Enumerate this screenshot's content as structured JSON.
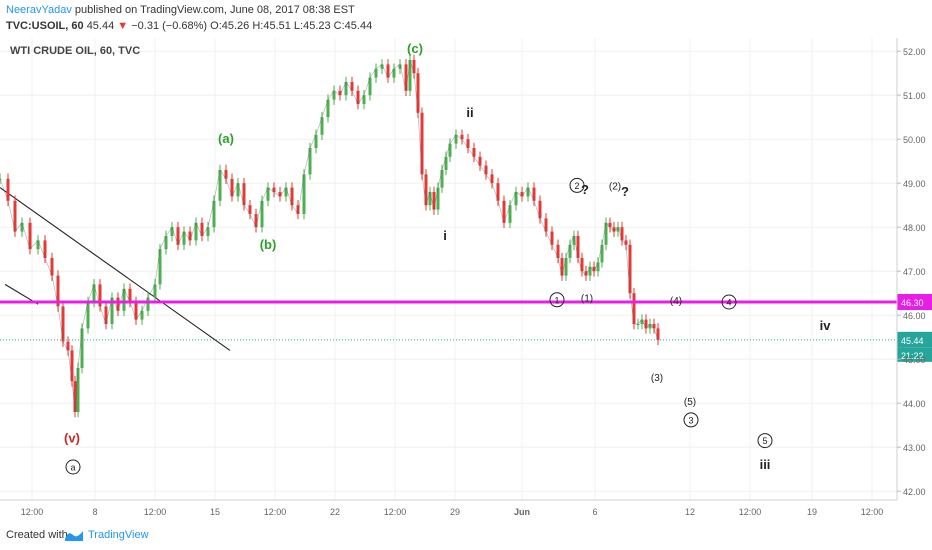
{
  "header": {
    "user": "NeeravYadav",
    "published": " published on TradingView.com, June 08, 2017 08:38 EST",
    "symbol": "TVC:USOIL, 60",
    "price": "45.44",
    "change_arrow": "▼",
    "change": "−0.31 (−0.68%)",
    "ohlc": "O:45.26 H:45.51 L:45.23 C:45.44"
  },
  "footer": {
    "created": "Created with",
    "brand": "TradingView"
  },
  "colors": {
    "magenta": "#e91ee6",
    "green": "#2ca02c",
    "red": "#c62828",
    "candle_up": "#4caf50",
    "candle_down": "#e53935",
    "price_badge": "#26a69a",
    "axis_text": "#666666"
  },
  "chart_data": {
    "type": "line",
    "title": "WTI CRUDE OIL, 60, TVC",
    "ylim": [
      41.8,
      52.3
    ],
    "y_ticks": [
      "42.00",
      "43.00",
      "44.00",
      "45.00",
      "46.00",
      "47.00",
      "48.00",
      "49.00",
      "50.00",
      "51.00",
      "52.00"
    ],
    "x_ticks": [
      "12:00",
      "8",
      "12:00",
      "15",
      "12:00",
      "22",
      "12:00",
      "29",
      "Jun",
      "6",
      "12",
      "12:00",
      "19",
      "12:00"
    ],
    "x_tick_index": [
      32,
      95,
      155,
      215,
      275,
      335,
      395,
      455,
      522,
      595,
      690,
      750,
      812,
      872
    ],
    "series": [
      {
        "x": [
          0,
          8,
          15,
          22,
          30,
          38,
          45,
          52,
          58,
          63,
          68,
          72,
          75,
          78,
          82,
          88,
          94,
          100,
          106,
          112,
          118,
          124,
          130,
          136,
          142,
          148,
          155,
          160,
          166,
          172,
          178,
          184,
          190,
          196,
          202,
          208,
          214,
          220,
          226,
          232,
          238,
          244,
          250,
          256,
          262,
          268,
          274,
          280,
          286,
          292,
          298,
          304,
          310,
          316,
          322,
          328,
          334,
          340,
          346,
          352,
          358,
          364,
          370,
          376,
          382,
          388,
          394,
          400,
          406,
          410,
          414,
          418,
          422,
          426,
          430,
          434,
          438,
          442,
          446,
          450,
          456,
          462,
          468,
          474,
          480,
          486,
          492,
          498,
          504,
          510,
          516,
          522,
          528,
          534,
          540,
          546,
          552,
          558,
          562,
          566,
          570,
          574,
          578,
          582,
          586,
          590,
          594,
          598,
          602,
          606,
          610,
          614,
          618,
          622,
          626,
          630,
          634,
          638,
          642,
          646,
          650,
          654,
          658
        ],
        "values": [
          49.1,
          48.6,
          47.9,
          48.1,
          47.5,
          47.7,
          47.3,
          46.9,
          46.2,
          45.4,
          45.2,
          44.5,
          43.8,
          44.8,
          45.7,
          46.3,
          46.7,
          46.2,
          45.8,
          46.4,
          46.1,
          46.6,
          46.3,
          45.9,
          46.1,
          46.4,
          46.7,
          47.5,
          47.8,
          48.0,
          47.6,
          47.9,
          47.7,
          48.1,
          47.8,
          48.0,
          48.6,
          49.3,
          49.1,
          48.7,
          49.0,
          48.5,
          48.3,
          48.0,
          48.6,
          48.9,
          48.8,
          48.7,
          48.9,
          48.5,
          48.3,
          49.2,
          49.8,
          50.1,
          50.5,
          50.9,
          51.1,
          51.0,
          51.3,
          51.1,
          50.8,
          51.0,
          51.4,
          51.6,
          51.7,
          51.4,
          51.6,
          51.7,
          51.1,
          51.8,
          51.5,
          50.6,
          49.2,
          48.5,
          48.8,
          48.4,
          48.9,
          49.3,
          49.6,
          49.9,
          50.1,
          50.0,
          49.8,
          49.6,
          49.4,
          49.2,
          49.0,
          48.6,
          48.1,
          48.5,
          48.8,
          48.7,
          48.9,
          48.6,
          48.2,
          47.9,
          47.6,
          47.3,
          46.9,
          47.3,
          47.6,
          47.8,
          47.3,
          47.0,
          46.9,
          47.1,
          47.0,
          47.2,
          47.6,
          48.1,
          48.0,
          47.9,
          48.0,
          47.7,
          47.6,
          46.5,
          45.8,
          45.8,
          45.9,
          45.7,
          45.8,
          45.7,
          45.44
        ]
      }
    ],
    "horizontal_line": {
      "value": 46.3,
      "label": "46.30"
    },
    "last_price": {
      "value": 45.44,
      "label": "45.44",
      "countdown": "21:22"
    },
    "trendlines": [
      {
        "from": [
          0,
          48.9
        ],
        "to": [
          230,
          45.2
        ]
      },
      {
        "from": [
          5,
          46.7
        ],
        "to": [
          38,
          46.25
        ]
      }
    ],
    "annotations": [
      {
        "text": "(c)",
        "x": 415,
        "y": 52.05,
        "color": "green"
      },
      {
        "text": "(a)",
        "x": 226,
        "y": 50.0,
        "color": "green"
      },
      {
        "text": "(b)",
        "x": 268,
        "y": 47.6,
        "color": "green"
      },
      {
        "text": "(v)",
        "x": 72,
        "y": 43.2,
        "color": "red"
      },
      {
        "text": "a",
        "x": 73,
        "y": 42.55,
        "color": "black",
        "circle": true
      },
      {
        "text": "ii",
        "x": 470,
        "y": 50.6,
        "color": "black",
        "bold": true
      },
      {
        "text": "i",
        "x": 445,
        "y": 47.8,
        "color": "black",
        "bold": true
      },
      {
        "text": "2",
        "x": 577,
        "y": 48.95,
        "color": "black",
        "circle": true
      },
      {
        "text": "?",
        "x": 585,
        "y": 48.85,
        "color": "black",
        "bold": true
      },
      {
        "text": "(2)",
        "x": 615,
        "y": 48.95,
        "color": "black"
      },
      {
        "text": "?",
        "x": 625,
        "y": 48.8,
        "color": "black",
        "bold": true
      },
      {
        "text": "1",
        "x": 557,
        "y": 46.35,
        "color": "black",
        "circle": true
      },
      {
        "text": "(1)",
        "x": 587,
        "y": 46.4,
        "color": "black"
      },
      {
        "text": "(4)",
        "x": 676,
        "y": 46.35,
        "color": "black"
      },
      {
        "text": "4",
        "x": 729,
        "y": 46.3,
        "color": "black",
        "circle": true
      },
      {
        "text": "iv",
        "x": 825,
        "y": 45.75,
        "color": "black",
        "bold": true
      },
      {
        "text": "(3)",
        "x": 657,
        "y": 44.6,
        "color": "black"
      },
      {
        "text": "(5)",
        "x": 690,
        "y": 44.05,
        "color": "black"
      },
      {
        "text": "3",
        "x": 691,
        "y": 43.62,
        "color": "black",
        "circle": true
      },
      {
        "text": "5",
        "x": 765,
        "y": 43.15,
        "color": "black",
        "circle": true
      },
      {
        "text": "iii",
        "x": 765,
        "y": 42.6,
        "color": "black",
        "bold": true
      }
    ]
  }
}
